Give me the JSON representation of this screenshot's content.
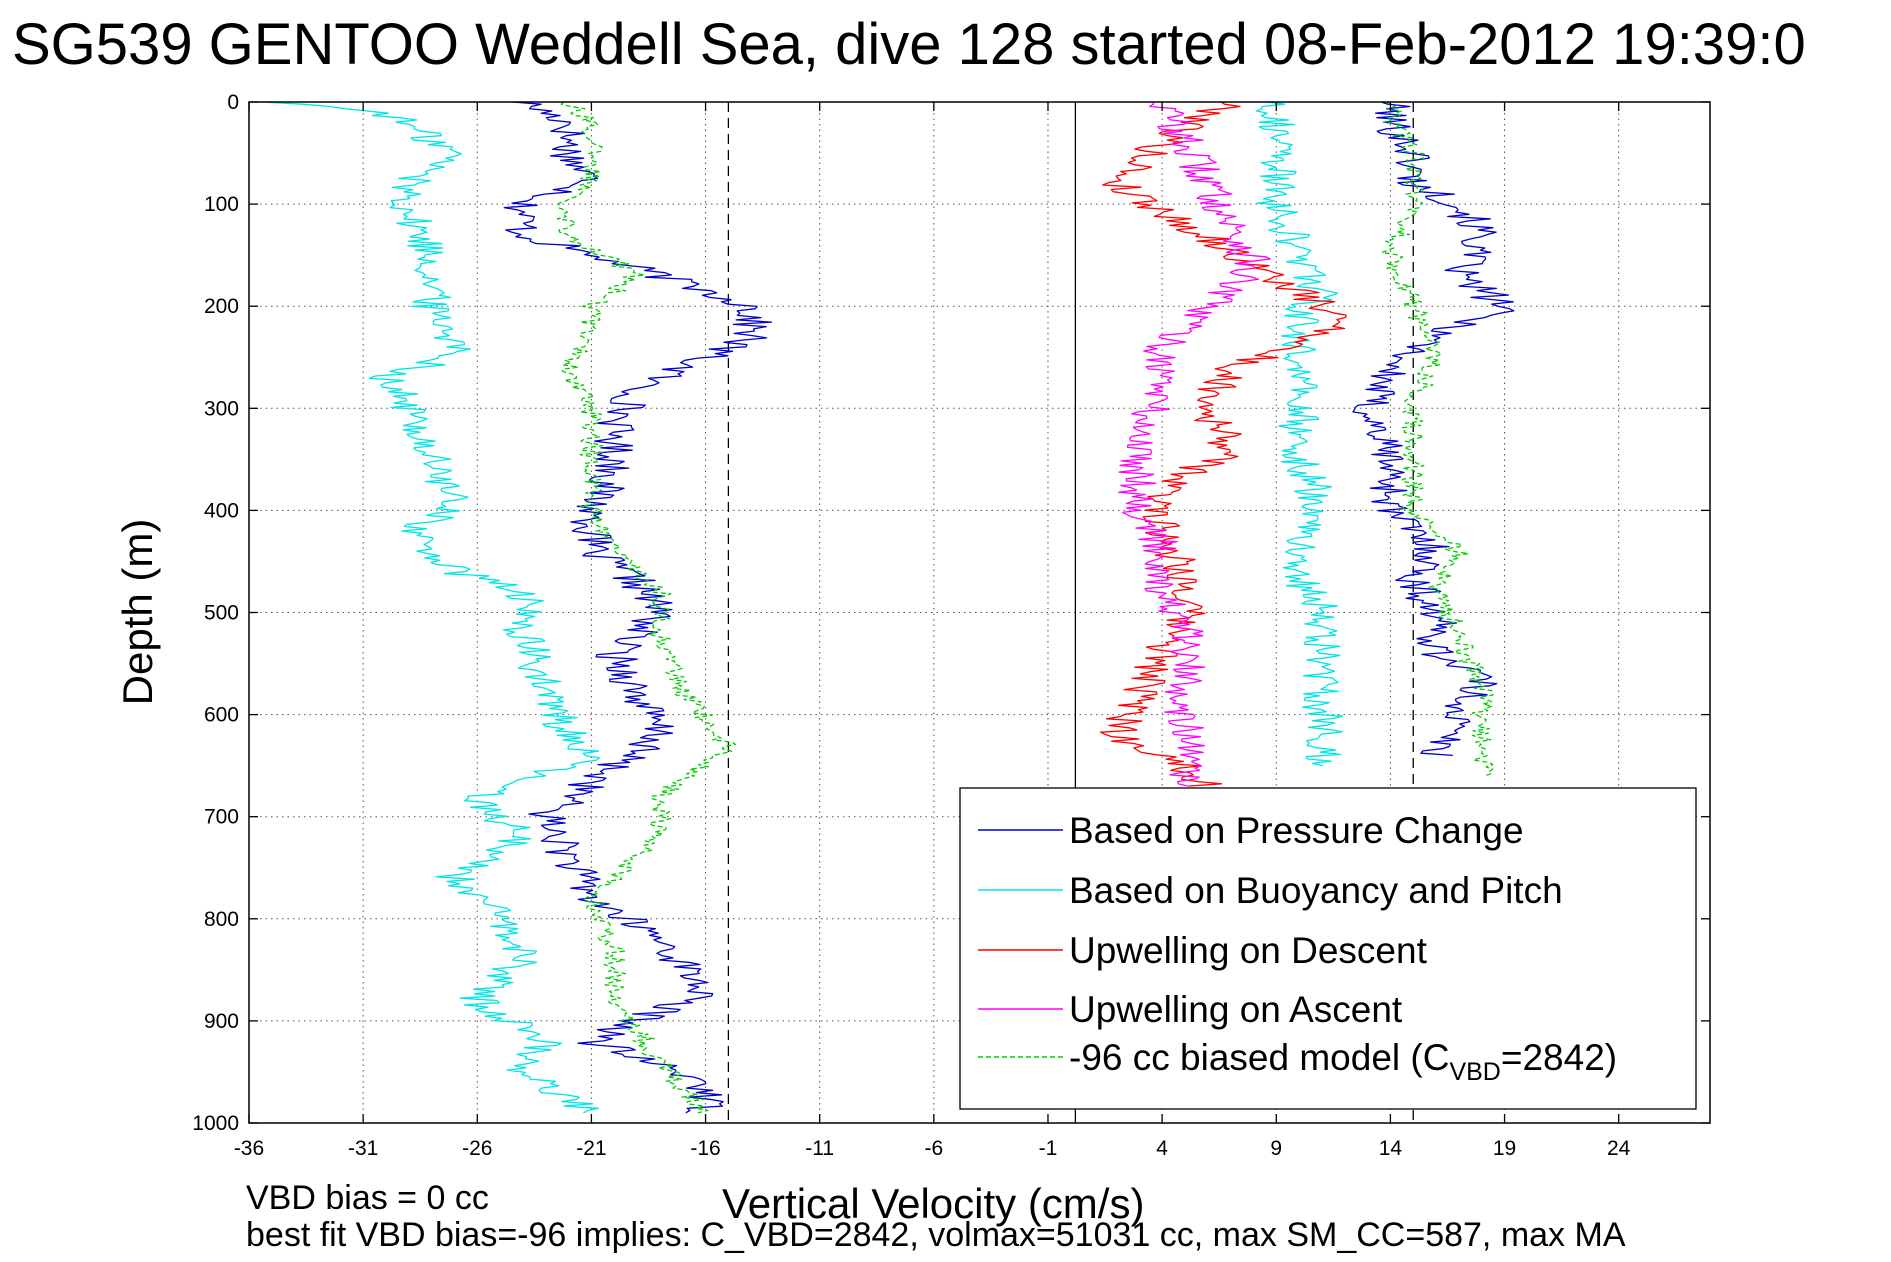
{
  "chart_data": {
    "type": "line",
    "title": "SG539 GENTOO Weddell Sea, dive 128 started 08-Feb-2012 19:39:0",
    "xlabel": "Vertical Velocity (cm/s)",
    "ylabel": "Depth (m)",
    "xlim": [
      -36,
      28
    ],
    "ylim": [
      1000,
      0
    ],
    "y_reversed": true,
    "xticks": [
      -36,
      -31,
      -26,
      -21,
      -16,
      -11,
      -6,
      -1,
      4,
      9,
      14,
      19,
      24
    ],
    "xtick_labels": [
      "-36",
      "-31",
      "-26",
      "-21",
      "-16",
      "-11",
      "-6",
      "-1",
      "4",
      "9",
      "14",
      "19",
      "24"
    ],
    "yticks": [
      0,
      100,
      200,
      300,
      400,
      500,
      600,
      700,
      800,
      900,
      1000
    ],
    "ytick_labels": [
      "0",
      "100",
      "200",
      "300",
      "400",
      "500",
      "600",
      "700",
      "800",
      "900",
      "1000"
    ],
    "grid": true,
    "legend_position": "bottom-right",
    "reference_lines": [
      {
        "x": 0.2,
        "style": "solid"
      },
      {
        "x": -15,
        "style": "dashed"
      },
      {
        "x": 15,
        "style": "dashed"
      }
    ],
    "series": [
      {
        "name": "Based on Pressure Change",
        "color": "#0000cc",
        "style": "solid",
        "depth": [
          0,
          20,
          50,
          80,
          100,
          130,
          170,
          200,
          230,
          250,
          280,
          320,
          360,
          400,
          440,
          470,
          500,
          540,
          580,
          620,
          650,
          700,
          740,
          780,
          820,
          870,
          920,
          960,
          990
        ],
        "values": [
          -24,
          -22,
          -22,
          -21,
          -24,
          -24,
          -18,
          -14,
          -14,
          -16,
          -19,
          -20,
          -20,
          -21,
          -21,
          -19,
          -18,
          -20,
          -19,
          -18,
          -20,
          -23,
          -22,
          -21,
          -18,
          -16,
          -21,
          -16,
          -16
        ],
        "ascent_depth": [
          0,
          20,
          50,
          80,
          100,
          130,
          170,
          200,
          230,
          260,
          300,
          350,
          400,
          440,
          470,
          500,
          540,
          560,
          600,
          640
        ],
        "ascent_values": [
          14,
          14,
          15,
          15,
          17,
          18,
          17,
          19,
          16,
          14,
          13,
          14,
          14,
          16,
          15,
          16,
          16,
          18,
          17,
          16
        ]
      },
      {
        "name": "Based on Buoyancy and Pitch",
        "color": "#00e5e5",
        "style": "solid",
        "depth": [
          0,
          10,
          50,
          80,
          110,
          150,
          200,
          230,
          250,
          270,
          300,
          350,
          400,
          420,
          460,
          480,
          520,
          580,
          620,
          640,
          680,
          720,
          760,
          800,
          840,
          880,
          920,
          950,
          990
        ],
        "values": [
          -35,
          -30,
          -27,
          -29,
          -29,
          -28,
          -28,
          -27,
          -27,
          -30,
          -29,
          -28,
          -27,
          -29,
          -27,
          -24,
          -24,
          -23,
          -22,
          -21,
          -26,
          -24,
          -27,
          -25,
          -24,
          -26,
          -23,
          -24,
          -21
        ],
        "ascent_depth": [
          0,
          20,
          50,
          100,
          150,
          190,
          200,
          260,
          300,
          350,
          400,
          430,
          460,
          500,
          560,
          620,
          650
        ],
        "ascent_values": [
          9,
          9,
          9,
          9,
          10,
          11,
          10,
          10,
          10,
          10,
          11,
          10,
          10,
          11,
          11,
          11,
          11
        ]
      },
      {
        "name": "Upwelling on Descent",
        "color": "#ff0000",
        "style": "solid",
        "depth": [
          0,
          40,
          80,
          120,
          160,
          200,
          220,
          260,
          300,
          340,
          380,
          420,
          460,
          500,
          540,
          580,
          620,
          650,
          670
        ],
        "values": [
          7,
          4,
          2,
          5,
          8,
          11,
          12,
          7,
          6,
          7,
          4,
          4,
          5,
          5,
          4,
          3,
          2,
          5,
          6
        ]
      },
      {
        "name": "Upwelling on Ascent",
        "color": "#ff00ff",
        "style": "solid",
        "depth": [
          0,
          40,
          80,
          120,
          160,
          200,
          240,
          280,
          320,
          360,
          400,
          440,
          480,
          520,
          560,
          600,
          640,
          670
        ],
        "values": [
          4,
          5,
          6,
          7,
          8,
          6,
          4,
          4,
          3,
          3,
          3,
          4,
          4,
          5,
          5,
          5,
          5,
          5
        ]
      },
      {
        "name": "-96 cc biased model (C_VBD=2842)",
        "legend_main": "-96 cc biased model (C",
        "legend_sub": "VBD",
        "legend_tail": "=2842)",
        "color": "#00cc00",
        "style": "dashed",
        "depth": [
          0,
          20,
          50,
          80,
          100,
          130,
          170,
          200,
          230,
          260,
          300,
          350,
          400,
          440,
          480,
          520,
          580,
          630,
          680,
          720,
          780,
          830,
          880,
          940,
          990
        ],
        "values": [
          -22,
          -21,
          -21,
          -21,
          -22,
          -22,
          -19,
          -21,
          -21,
          -22,
          -21,
          -21,
          -21,
          -20,
          -18,
          -18,
          -17,
          -15,
          -18,
          -18,
          -21,
          -20,
          -20,
          -18,
          -16
        ],
        "ascent_depth": [
          0,
          20,
          50,
          100,
          150,
          200,
          240,
          300,
          360,
          400,
          440,
          480,
          520,
          580,
          620,
          660
        ],
        "ascent_values": [
          14,
          14,
          15,
          15,
          14,
          15,
          16,
          15,
          15,
          15,
          17,
          16,
          17,
          18,
          18,
          18
        ]
      }
    ]
  },
  "footer": {
    "line1": "VBD bias = 0 cc",
    "line2": "best fit VBD bias=-96 implies: C_VBD=2842, volmax=51031 cc, max SM_CC=587, max MA"
  }
}
